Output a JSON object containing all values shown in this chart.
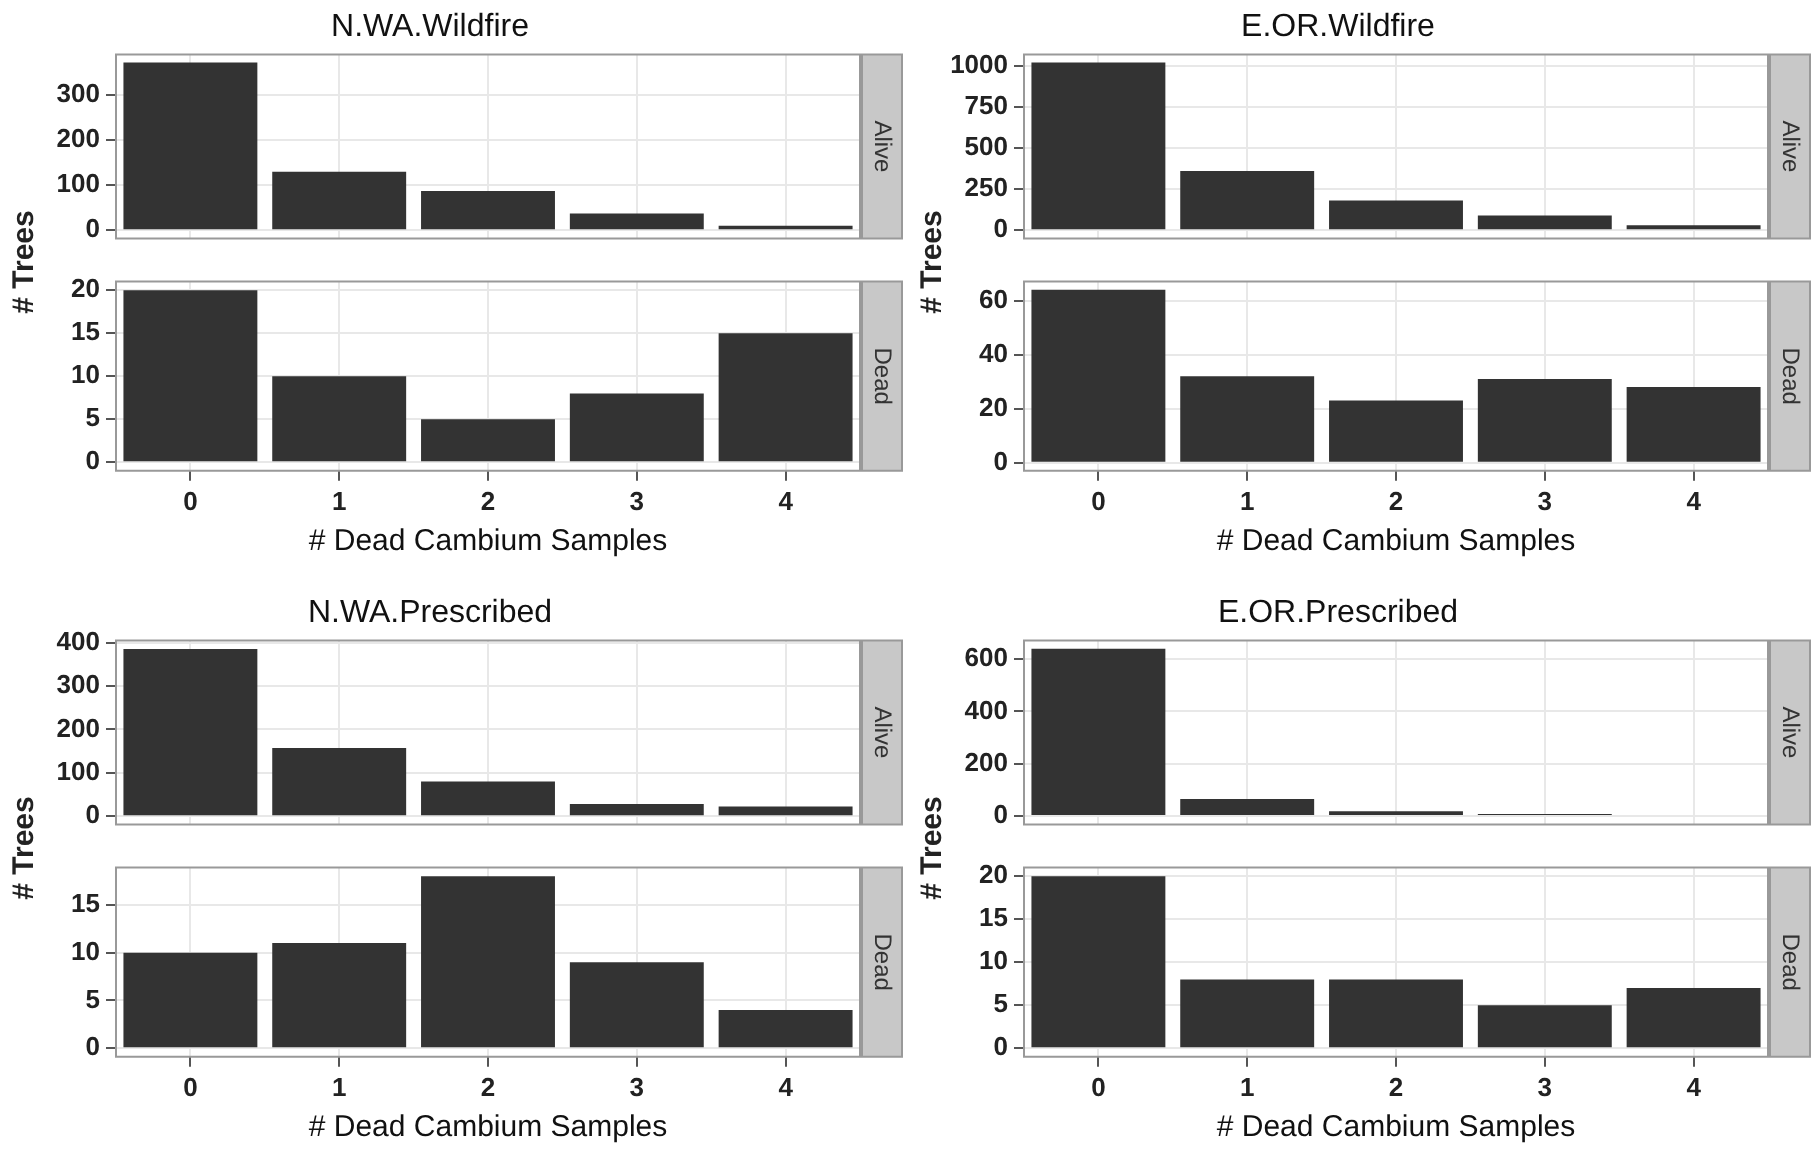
{
  "chart_data": [
    {
      "type": "bar",
      "title": "N.WA.Wildfire",
      "ylabel": "# Trees",
      "y2label": "Alive",
      "categories": [
        "0",
        "1",
        "2",
        "3",
        "4"
      ],
      "values": [
        372,
        130,
        87,
        37,
        10
      ],
      "color": "#333333",
      "ylim": [
        -18,
        390
      ],
      "yticks": [
        0,
        100,
        200,
        300
      ],
      "grid": true,
      "tick_labels": "y"
    },
    {
      "type": "bar",
      "xlabel": "# Dead Cambium Samples",
      "y2label": "Dead",
      "categories": [
        "0",
        "1",
        "2",
        "3",
        "4"
      ],
      "values": [
        20,
        10,
        5,
        8,
        15
      ],
      "color": "#333333",
      "ylim": [
        -1,
        21
      ],
      "yticks": [
        0,
        5,
        10,
        15,
        20
      ],
      "grid": true
    },
    {
      "type": "bar",
      "title": "E.OR.Wildfire",
      "ylabel": "# Trees",
      "y2label": "Alive",
      "categories": [
        "0",
        "1",
        "2",
        "3",
        "4"
      ],
      "values": [
        1020,
        360,
        180,
        90,
        30
      ],
      "color": "#333333",
      "ylim": [
        -50,
        1070
      ],
      "yticks": [
        0,
        250,
        500,
        750,
        1000
      ],
      "grid": true,
      "tick_labels": "y"
    },
    {
      "type": "bar",
      "xlabel": "# Dead Cambium Samples",
      "y2label": "Dead",
      "categories": [
        "0",
        "1",
        "2",
        "3",
        "4"
      ],
      "values": [
        64,
        32,
        23,
        31,
        28
      ],
      "color": "#333333",
      "ylim": [
        -3,
        67
      ],
      "yticks": [
        0,
        20,
        40,
        60
      ],
      "grid": true
    },
    {
      "type": "bar",
      "title": "N.WA.Prescribed",
      "ylabel": "# Trees",
      "y2label": "Alive",
      "categories": [
        "0",
        "1",
        "2",
        "3",
        "4"
      ],
      "values": [
        385,
        157,
        80,
        28,
        22
      ],
      "color": "#333333",
      "ylim": [
        -19,
        405
      ],
      "yticks": [
        0,
        100,
        200,
        300,
        400
      ],
      "grid": true,
      "tick_labels": "y"
    },
    {
      "type": "bar",
      "xlabel": "# Dead Cambium Samples",
      "y2label": "Dead",
      "categories": [
        "0",
        "1",
        "2",
        "3",
        "4"
      ],
      "values": [
        10,
        11,
        18,
        9,
        4
      ],
      "color": "#333333",
      "ylim": [
        -0.9,
        18.9
      ],
      "yticks": [
        0,
        5,
        10,
        15
      ],
      "grid": true
    },
    {
      "type": "bar",
      "title": "E.OR.Prescribed",
      "ylabel": "# Trees",
      "y2label": "Alive",
      "categories": [
        "0",
        "1",
        "2",
        "3",
        "4"
      ],
      "values": [
        640,
        65,
        18,
        8,
        null
      ],
      "color": "#333333",
      "ylim": [
        -32,
        672
      ],
      "yticks": [
        0,
        200,
        400,
        600
      ],
      "grid": true,
      "tick_labels": "y"
    },
    {
      "type": "bar",
      "xlabel": "# Dead Cambium Samples",
      "y2label": "Dead",
      "categories": [
        "0",
        "1",
        "2",
        "3",
        "4"
      ],
      "values": [
        20,
        8,
        8,
        5,
        7
      ],
      "color": "#333333",
      "ylim": [
        -1,
        21
      ],
      "yticks": [
        0,
        5,
        10,
        15,
        20
      ],
      "grid": true
    }
  ]
}
